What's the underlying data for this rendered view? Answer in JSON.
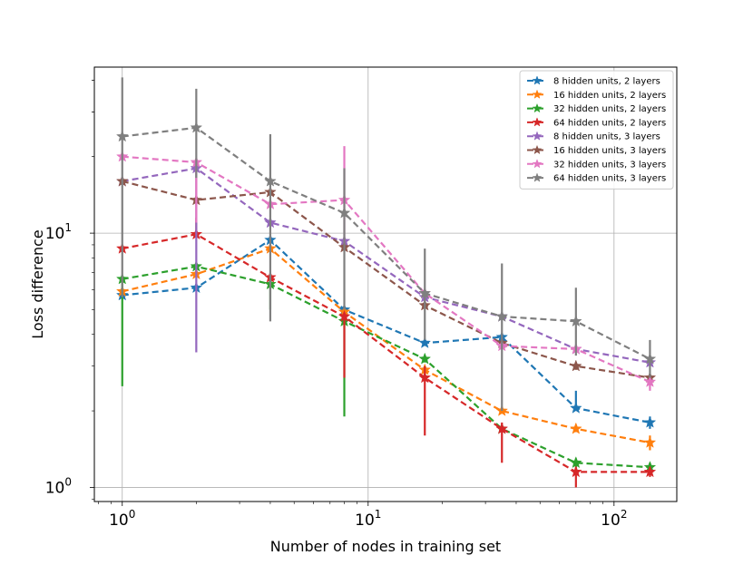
{
  "chart_data": {
    "type": "line",
    "xlabel": "Number of nodes in training set",
    "ylabel": "Loss difference",
    "xscale": "log",
    "yscale": "log",
    "xlim": [
      0.77,
      180
    ],
    "ylim": [
      0.88,
      45
    ],
    "grid": true,
    "legend_position": "top-right",
    "x_ticks": [
      {
        "value": 1,
        "base": "10",
        "exp": "0"
      },
      {
        "value": 10,
        "base": "10",
        "exp": "1"
      },
      {
        "value": 100,
        "base": "10",
        "exp": "2"
      }
    ],
    "y_ticks": [
      {
        "value": 1,
        "base": "10",
        "exp": "0"
      },
      {
        "value": 10,
        "base": "10",
        "exp": "1"
      }
    ],
    "x": [
      1,
      2,
      4,
      8,
      17,
      35,
      70,
      140
    ],
    "series": [
      {
        "name": "8 hidden units, 2 layers",
        "color": "#1f77b4",
        "values": [
          5.7,
          6.1,
          9.4,
          5.0,
          3.7,
          3.9,
          2.05,
          1.8
        ],
        "err_low": [
          5.6,
          6.0,
          9.3,
          4.9,
          3.6,
          3.8,
          2.0,
          1.7
        ],
        "err_high": [
          5.8,
          6.2,
          9.5,
          5.1,
          3.8,
          4.0,
          2.4,
          1.9
        ]
      },
      {
        "name": "16 hidden units, 2 layers",
        "color": "#ff7f0e",
        "values": [
          5.9,
          6.9,
          8.7,
          4.9,
          2.9,
          2.0,
          1.7,
          1.5
        ],
        "err_low": [
          5.8,
          6.8,
          8.6,
          4.8,
          2.8,
          1.95,
          1.65,
          1.4
        ],
        "err_high": [
          6.0,
          7.0,
          8.8,
          5.0,
          3.0,
          2.05,
          1.75,
          1.6
        ]
      },
      {
        "name": "32 hidden units, 2 layers",
        "color": "#2ca02c",
        "values": [
          6.6,
          7.4,
          6.3,
          4.5,
          3.2,
          1.7,
          1.25,
          1.2
        ],
        "err_low": [
          2.5,
          7.3,
          5.0,
          1.9,
          3.1,
          1.65,
          1.2,
          1.15
        ],
        "err_high": [
          6.7,
          7.5,
          6.4,
          4.6,
          3.3,
          1.75,
          1.3,
          1.25
        ]
      },
      {
        "name": "64 hidden units, 2 layers",
        "color": "#d62728",
        "values": [
          8.7,
          9.9,
          6.7,
          4.7,
          2.7,
          1.7,
          1.15,
          1.15
        ],
        "err_low": [
          8.6,
          9.8,
          6.6,
          2.7,
          1.6,
          1.25,
          1.0,
          1.1
        ],
        "err_high": [
          8.8,
          11.5,
          6.8,
          4.8,
          3.0,
          1.8,
          1.2,
          1.2
        ]
      },
      {
        "name": "8 hidden units, 3 layers",
        "color": "#9467bd",
        "values": [
          16.0,
          18.0,
          11.0,
          9.3,
          5.6,
          4.7,
          3.5,
          3.1
        ],
        "err_low": [
          15.9,
          3.4,
          10.9,
          9.2,
          5.5,
          4.6,
          3.4,
          3.0
        ],
        "err_high": [
          16.1,
          18.1,
          11.1,
          9.4,
          5.7,
          4.8,
          3.6,
          3.2
        ]
      },
      {
        "name": "16 hidden units, 3 layers",
        "color": "#8c564b",
        "values": [
          16.0,
          13.5,
          14.5,
          8.8,
          5.2,
          3.7,
          3.0,
          2.7
        ],
        "err_low": [
          15.9,
          13.4,
          14.4,
          8.7,
          5.1,
          3.6,
          2.9,
          2.6
        ],
        "err_high": [
          16.1,
          13.6,
          14.6,
          8.9,
          5.3,
          3.8,
          3.1,
          2.8
        ]
      },
      {
        "name": "32 hidden units, 3 layers",
        "color": "#e377c2",
        "values": [
          20.0,
          19.0,
          13.0,
          13.5,
          5.8,
          3.6,
          3.5,
          2.6
        ],
        "err_low": [
          19.9,
          11.0,
          12.9,
          9.0,
          5.7,
          3.5,
          3.4,
          2.4
        ],
        "err_high": [
          20.1,
          19.1,
          13.1,
          22.0,
          5.9,
          3.7,
          3.6,
          2.7
        ]
      },
      {
        "name": "64 hidden units, 3 layers",
        "color": "#7f7f7f",
        "values": [
          24.0,
          26.0,
          16.0,
          12.0,
          5.8,
          4.7,
          4.5,
          3.2
        ],
        "err_low": [
          5.6,
          16.5,
          4.5,
          5.0,
          3.8,
          2.0,
          3.3,
          2.7
        ],
        "err_high": [
          41.0,
          37.0,
          24.5,
          18.0,
          8.7,
          7.6,
          6.1,
          3.8
        ]
      }
    ]
  }
}
